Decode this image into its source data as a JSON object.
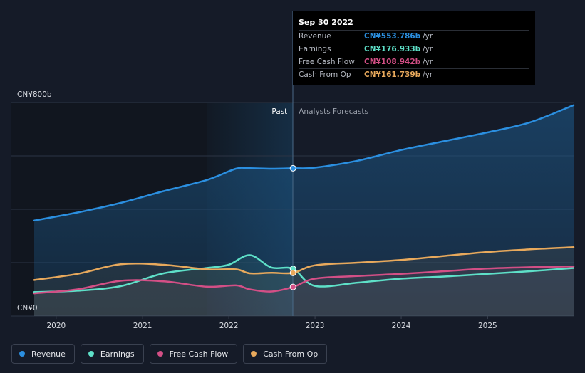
{
  "chart_data": {
    "type": "line",
    "y_axis": {
      "top_label": "CN¥800b",
      "bottom_label": "CN¥0",
      "ylim": [
        0,
        800
      ]
    },
    "x_ticks": [
      "2020",
      "2021",
      "2022",
      "2023",
      "2024",
      "2025"
    ],
    "divider": {
      "past_label": "Past",
      "forecast_label": "Analysts Forecasts",
      "date": "2022-09-30"
    },
    "series": [
      {
        "name": "Revenue",
        "color": "#2b8fe0",
        "points": [
          [
            "2019-09-30",
            358
          ],
          [
            "2020-03-31",
            388
          ],
          [
            "2020-09-30",
            424
          ],
          [
            "2021-03-31",
            468
          ],
          [
            "2021-09-30",
            510
          ],
          [
            "2022-01-31",
            552
          ],
          [
            "2022-03-31",
            554
          ],
          [
            "2022-06-30",
            552
          ],
          [
            "2022-09-30",
            553.8
          ],
          [
            "2022-12-31",
            556
          ],
          [
            "2023-06-30",
            582
          ],
          [
            "2023-12-31",
            622
          ],
          [
            "2024-06-30",
            655
          ],
          [
            "2024-12-31",
            688
          ],
          [
            "2025-06-30",
            726
          ],
          [
            "2025-12-31",
            790
          ]
        ]
      },
      {
        "name": "Earnings",
        "color": "#5ee0c8",
        "points": [
          [
            "2019-09-30",
            90
          ],
          [
            "2020-03-31",
            95
          ],
          [
            "2020-09-30",
            112
          ],
          [
            "2021-03-31",
            160
          ],
          [
            "2021-09-30",
            180
          ],
          [
            "2021-12-31",
            192
          ],
          [
            "2022-03-31",
            228
          ],
          [
            "2022-06-30",
            182
          ],
          [
            "2022-09-30",
            176.9
          ],
          [
            "2022-12-31",
            113
          ],
          [
            "2023-06-30",
            125
          ],
          [
            "2023-12-31",
            140
          ],
          [
            "2024-06-30",
            148
          ],
          [
            "2024-12-31",
            158
          ],
          [
            "2025-06-30",
            168
          ],
          [
            "2025-12-31",
            180
          ]
        ]
      },
      {
        "name": "Free Cash Flow",
        "color": "#d34f86",
        "points": [
          [
            "2019-09-30",
            85
          ],
          [
            "2020-03-31",
            100
          ],
          [
            "2020-09-30",
            132
          ],
          [
            "2021-03-31",
            130
          ],
          [
            "2021-09-30",
            110
          ],
          [
            "2022-01-31",
            115
          ],
          [
            "2022-03-31",
            100
          ],
          [
            "2022-06-30",
            92
          ],
          [
            "2022-09-30",
            108.9
          ],
          [
            "2022-12-31",
            140
          ],
          [
            "2023-06-30",
            150
          ],
          [
            "2023-12-31",
            158
          ],
          [
            "2024-06-30",
            168
          ],
          [
            "2024-12-31",
            178
          ],
          [
            "2025-06-30",
            183
          ],
          [
            "2025-12-31",
            186
          ]
        ]
      },
      {
        "name": "Cash From Op",
        "color": "#e8a95c",
        "points": [
          [
            "2019-09-30",
            135
          ],
          [
            "2020-03-31",
            158
          ],
          [
            "2020-09-30",
            194
          ],
          [
            "2021-03-31",
            192
          ],
          [
            "2021-09-30",
            175
          ],
          [
            "2022-01-31",
            175
          ],
          [
            "2022-03-31",
            160
          ],
          [
            "2022-06-30",
            162
          ],
          [
            "2022-09-30",
            161.7
          ],
          [
            "2022-12-31",
            190
          ],
          [
            "2023-06-30",
            200
          ],
          [
            "2023-12-31",
            210
          ],
          [
            "2024-06-30",
            225
          ],
          [
            "2024-12-31",
            240
          ],
          [
            "2025-06-30",
            250
          ],
          [
            "2025-12-31",
            258
          ]
        ]
      }
    ]
  },
  "tooltip": {
    "date": "Sep 30 2022",
    "rows": [
      {
        "label": "Revenue",
        "value": "CN¥553.786b",
        "unit": "/yr",
        "color": "#2b8fe0"
      },
      {
        "label": "Earnings",
        "value": "CN¥176.933b",
        "unit": "/yr",
        "color": "#5ee0c8"
      },
      {
        "label": "Free Cash Flow",
        "value": "CN¥108.942b",
        "unit": "/yr",
        "color": "#d34f86"
      },
      {
        "label": "Cash From Op",
        "value": "CN¥161.739b",
        "unit": "/yr",
        "color": "#e8a95c"
      }
    ]
  },
  "legend": [
    {
      "label": "Revenue",
      "color": "#2b8fe0"
    },
    {
      "label": "Earnings",
      "color": "#5ee0c8"
    },
    {
      "label": "Free Cash Flow",
      "color": "#d34f86"
    },
    {
      "label": "Cash From Op",
      "color": "#e8a95c"
    }
  ]
}
